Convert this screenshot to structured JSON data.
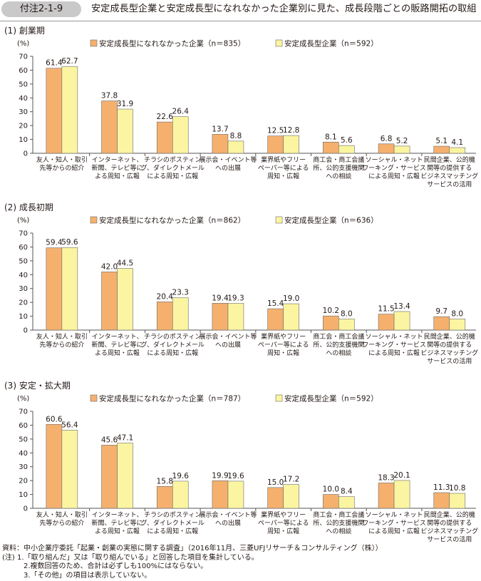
{
  "figure_label": "付注2-1-9",
  "figure_title": "安定成長型企業と安定成長型になれなかった企業別に見た、成長段階ごとの販路開拓の取組",
  "colors": {
    "not_stable": "#f5b06e",
    "stable": "#fbf5a1",
    "bar_stroke": "#6b6b6b",
    "axis": "#555555",
    "header_bg": "#c9c9c9"
  },
  "chart_data": [
    {
      "type": "bar",
      "title": "(1) 創業期",
      "ylabel": "(%)",
      "ylim": [
        0,
        70
      ],
      "yticks": [
        0,
        10,
        20,
        30,
        40,
        50,
        60,
        70
      ],
      "legend_position": "top",
      "categories": [
        [
          "友人・知人・取引",
          "先等からの紹介"
        ],
        [
          "インターネット、",
          "新聞、テレビ等に",
          "よる周知・広報"
        ],
        [
          "チラシのポスティン",
          "グ、ダイレクトメール",
          "による周知・広報"
        ],
        [
          "展示会・イベント等",
          "への出展"
        ],
        [
          "業界紙やフリー",
          "ペーパー等による",
          "周知・広報"
        ],
        [
          "商工会・商工会議",
          "所、公的支援機関",
          "への相談"
        ],
        [
          "ソーシャル・ネット",
          "ワーキング・サービス",
          "による周知・広報"
        ],
        [
          "民間企業、公的機",
          "関等の提供する",
          "ビジネスマッチング",
          "サービスの活用"
        ]
      ],
      "series": [
        {
          "name": "安定成長型になれなかった企業（n＝835）",
          "values": [
            61.4,
            37.8,
            22.6,
            13.7,
            12.5,
            8.1,
            6.8,
            5.1
          ]
        },
        {
          "name": "安定成長型企業（n＝592）",
          "values": [
            62.7,
            31.9,
            26.4,
            8.8,
            12.8,
            5.6,
            5.2,
            4.1
          ]
        }
      ]
    },
    {
      "type": "bar",
      "title": "(2) 成長初期",
      "ylabel": "(%)",
      "ylim": [
        0,
        70
      ],
      "yticks": [
        0,
        10,
        20,
        30,
        40,
        50,
        60,
        70
      ],
      "legend_position": "top",
      "categories": [
        [
          "友人・知人・取引",
          "先等からの紹介"
        ],
        [
          "インターネット、",
          "新聞、テレビ等に",
          "よる周知・広報"
        ],
        [
          "チラシのポスティン",
          "グ、ダイレクトメール",
          "による周知・広報"
        ],
        [
          "展示会・イベント等",
          "への出展"
        ],
        [
          "業界紙やフリー",
          "ペーパー等による",
          "周知・広報"
        ],
        [
          "商工会・商工会議",
          "所、公的支援機関",
          "への相談"
        ],
        [
          "ソーシャル・ネット",
          "ワーキング・サービス",
          "による周知・広報"
        ],
        [
          "民間企業、公的機",
          "関等の提供する",
          "ビジネスマッチング",
          "サービスの活用"
        ]
      ],
      "series": [
        {
          "name": "安定成長型になれなかった企業（n＝862）",
          "values": [
            59.4,
            42.0,
            20.4,
            19.4,
            15.4,
            10.2,
            11.5,
            9.7
          ]
        },
        {
          "name": "安定成長型企業（n＝636）",
          "values": [
            59.6,
            44.5,
            23.3,
            19.3,
            19.0,
            8.0,
            13.4,
            8.0
          ]
        }
      ]
    },
    {
      "type": "bar",
      "title": "(3) 安定・拡大期",
      "ylabel": "(%)",
      "ylim": [
        0,
        70
      ],
      "yticks": [
        0,
        10,
        20,
        30,
        40,
        50,
        60,
        70
      ],
      "legend_position": "top",
      "categories": [
        [
          "友人・知人・取引",
          "先等からの紹介"
        ],
        [
          "インターネット、",
          "新聞、テレビ等に",
          "よる周知・広報"
        ],
        [
          "チラシのポスティン",
          "グ、ダイレクトメール",
          "による周知・広報"
        ],
        [
          "展示会・イベント等",
          "への出展"
        ],
        [
          "業界紙やフリー",
          "ペーパー等による",
          "周知・広報"
        ],
        [
          "商工会・商工会議",
          "所、公的支援機関",
          "への相談"
        ],
        [
          "ソーシャル・ネット",
          "ワーキング・サービス",
          "による周知・広報"
        ],
        [
          "民間企業、公的機",
          "関等の提供する",
          "ビジネスマッチング",
          "サービスの活用"
        ]
      ],
      "series": [
        {
          "name": "安定成長型になれなかった企業（n＝787）",
          "values": [
            60.6,
            45.6,
            15.8,
            19.9,
            15.0,
            10.0,
            18.3,
            11.3
          ]
        },
        {
          "name": "安定成長型企業（n＝592）",
          "values": [
            56.4,
            47.1,
            19.6,
            19.6,
            17.2,
            8.4,
            20.1,
            10.8
          ]
        }
      ]
    }
  ],
  "notes": [
    "資料：中小企業庁委託「起業・創業の実態に関する調査」（2016年11月、三菱UFJリサーチ＆コンサルティング（株））",
    "(注) 1.「取り組んだ」又は「取り組んでいる」と回答した項目を集計している。",
    "2.複数回答のため、合計は必ずしも100%にはならない。",
    "3.「その他」の項目は表示していない。"
  ]
}
